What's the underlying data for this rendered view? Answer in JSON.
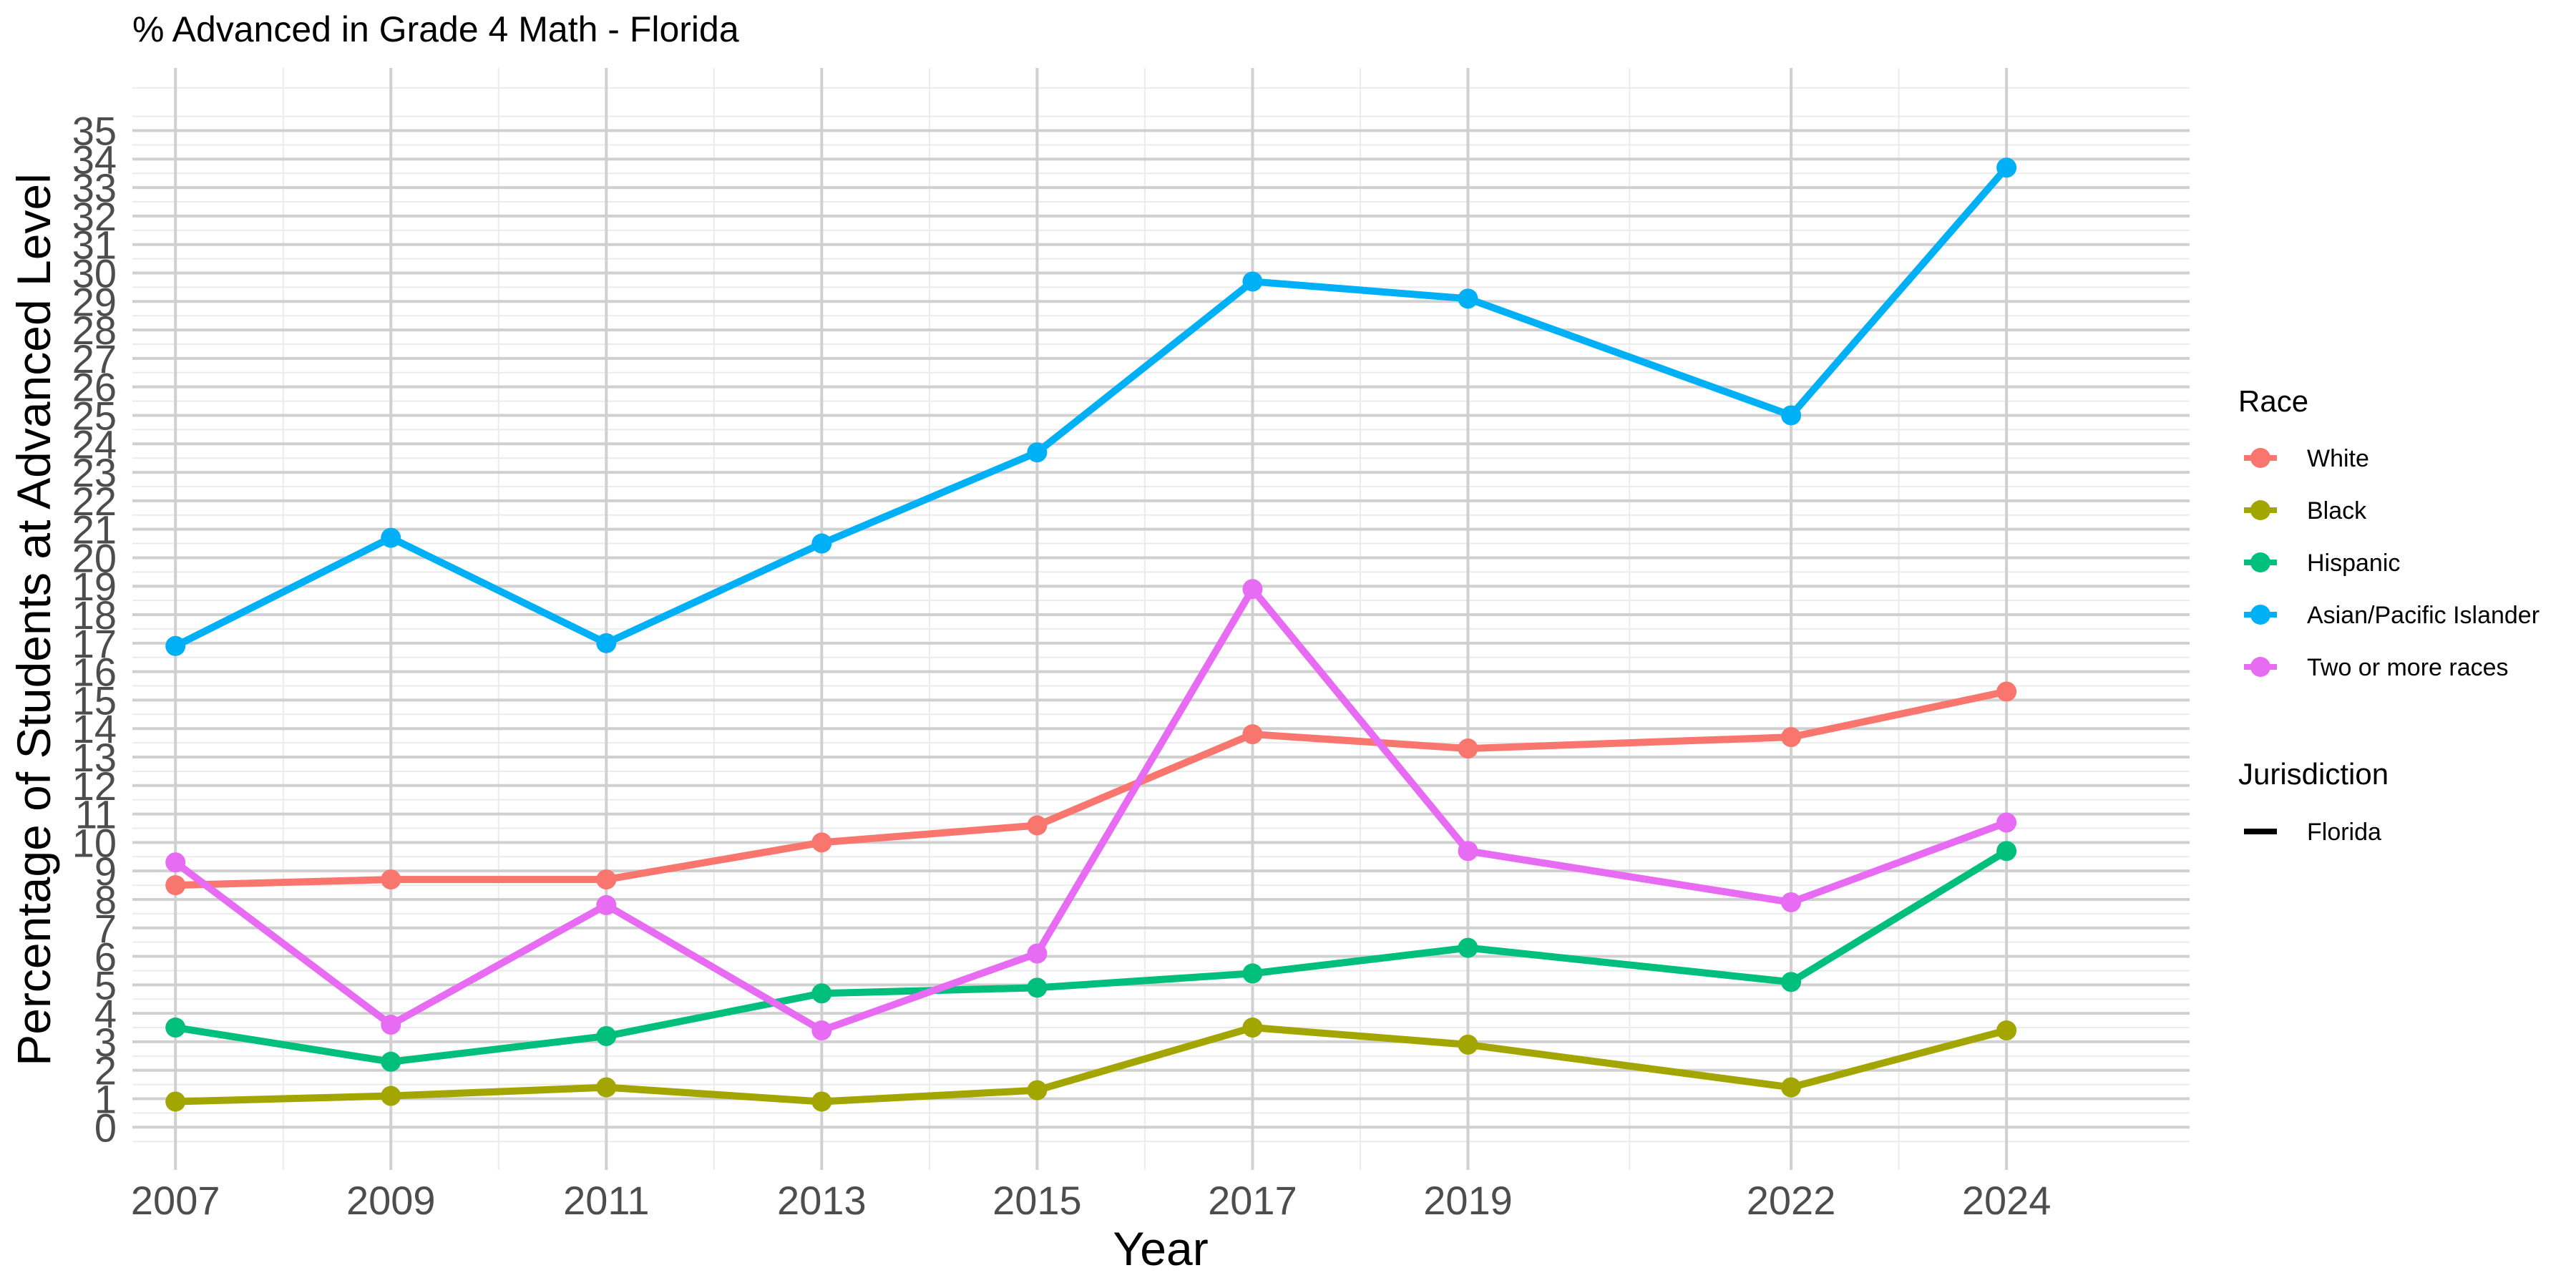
{
  "chart_data": {
    "type": "line",
    "title": "% Advanced in Grade 4 Math - Florida",
    "xlabel": "Year",
    "ylabel": "Percentage of Students at Advanced Level",
    "x": [
      2007,
      2009,
      2011,
      2013,
      2015,
      2017,
      2019,
      2022,
      2024
    ],
    "x_ticks": [
      "2007",
      "2009",
      "2011",
      "2013",
      "2015",
      "2017",
      "2019",
      "2022",
      "2024"
    ],
    "y_ticks": [
      "0",
      "1",
      "2",
      "3",
      "4",
      "5",
      "6",
      "7",
      "8",
      "9",
      "10",
      "11",
      "12",
      "13",
      "14",
      "15",
      "16",
      "17",
      "18",
      "19",
      "20",
      "21",
      "22",
      "23",
      "24",
      "25",
      "26",
      "27",
      "28",
      "29",
      "30",
      "31",
      "32",
      "33",
      "34",
      "35"
    ],
    "xlim": [
      2006.6,
      2025.7
    ],
    "ylim": [
      -1.5,
      37.2
    ],
    "grid": true,
    "series": [
      {
        "name": "White",
        "color": "#F8766D",
        "values": [
          8.5,
          8.7,
          8.7,
          10.0,
          10.6,
          13.8,
          13.3,
          13.7,
          15.3
        ]
      },
      {
        "name": "Black",
        "color": "#A3A500",
        "values": [
          0.9,
          1.1,
          1.4,
          0.9,
          1.3,
          3.5,
          2.9,
          1.4,
          3.4
        ]
      },
      {
        "name": "Hispanic",
        "color": "#00BF7D",
        "values": [
          3.5,
          2.3,
          3.2,
          4.7,
          4.9,
          5.4,
          6.3,
          5.1,
          9.7
        ]
      },
      {
        "name": "Asian/Pacific Islander",
        "color": "#00B0F6",
        "values": [
          16.9,
          20.7,
          17.0,
          20.5,
          23.7,
          29.7,
          29.1,
          25.0,
          33.7
        ]
      },
      {
        "name": "Two or more races",
        "color": "#E76BF3",
        "values": [
          9.3,
          3.6,
          7.8,
          3.4,
          6.1,
          18.9,
          9.7,
          7.9,
          10.7
        ]
      }
    ],
    "legend": {
      "placement": "right",
      "race_title": "Race",
      "jurisdiction_title": "Jurisdiction",
      "jurisdiction_items": [
        "Florida"
      ]
    }
  }
}
